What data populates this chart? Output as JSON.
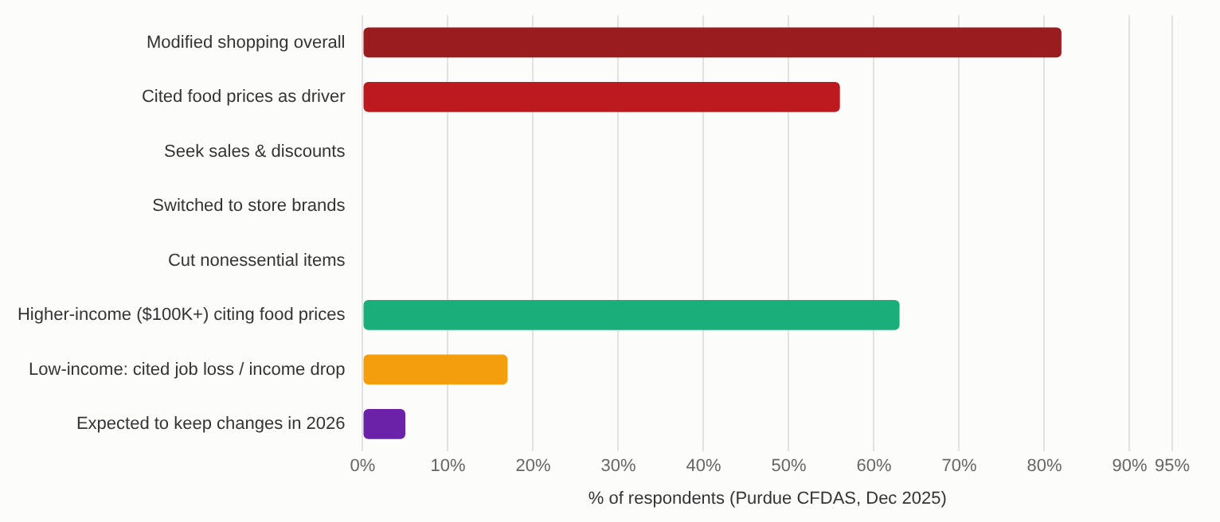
{
  "chart_data": {
    "type": "bar",
    "orientation": "horizontal",
    "categories": [
      "Modified shopping overall",
      "Cited food prices as driver",
      "Seek sales & discounts",
      "Switched to store brands",
      "Cut nonessential items",
      "Higher-income ($100K+) citing food prices",
      "Low-income: cited job loss / income drop",
      "Expected to keep changes in 2026"
    ],
    "values": [
      82,
      56,
      null,
      null,
      null,
      63,
      17,
      5
    ],
    "colors": [
      "#9b1c1f",
      "#bd1a1f",
      "#bd1a1f",
      "#bd1a1f",
      "#bd1a1f",
      "#1aaf7a",
      "#f59e0b",
      "#6b21a8"
    ],
    "xlim": [
      0,
      95
    ],
    "xticks": [
      {
        "value": 0,
        "label": "0%"
      },
      {
        "value": 10,
        "label": "10%"
      },
      {
        "value": 20,
        "label": "20%"
      },
      {
        "value": 30,
        "label": "30%"
      },
      {
        "value": 40,
        "label": "40%"
      },
      {
        "value": 50,
        "label": "50%"
      },
      {
        "value": 60,
        "label": "60%"
      },
      {
        "value": 70,
        "label": "70%"
      },
      {
        "value": 80,
        "label": "80%"
      },
      {
        "value": 90,
        "label": "90%"
      },
      {
        "value": 95,
        "label": "95%"
      }
    ],
    "xlabel": "% of respondents (Purdue CFDAS, Dec 2025)",
    "grid": "x",
    "legend": false
  }
}
